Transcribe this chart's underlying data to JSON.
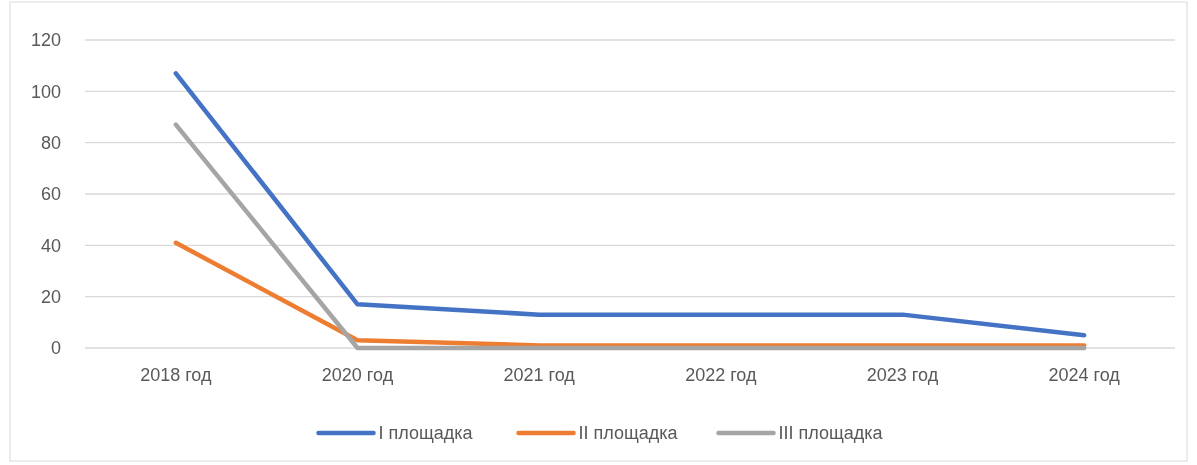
{
  "chart_data": {
    "type": "line",
    "categories": [
      "2018 год",
      "2020 год",
      "2021 год",
      "2022 год",
      "2023 год",
      "2024 год"
    ],
    "series": [
      {
        "name": "I площадка",
        "color": "#4472c4",
        "values": [
          107,
          17,
          13,
          13,
          13,
          5
        ]
      },
      {
        "name": "II площадка",
        "color": "#ed7d31",
        "values": [
          41,
          3,
          1,
          1,
          1,
          1
        ]
      },
      {
        "name": "III площадка",
        "color": "#a5a5a5",
        "values": [
          87,
          0,
          0,
          0,
          0,
          0
        ]
      }
    ],
    "ylim": [
      0,
      120
    ],
    "yticks": [
      0,
      20,
      40,
      60,
      80,
      100,
      120
    ],
    "grid": "y",
    "legend": "bottom",
    "marker": "none",
    "line_style": "solid"
  }
}
